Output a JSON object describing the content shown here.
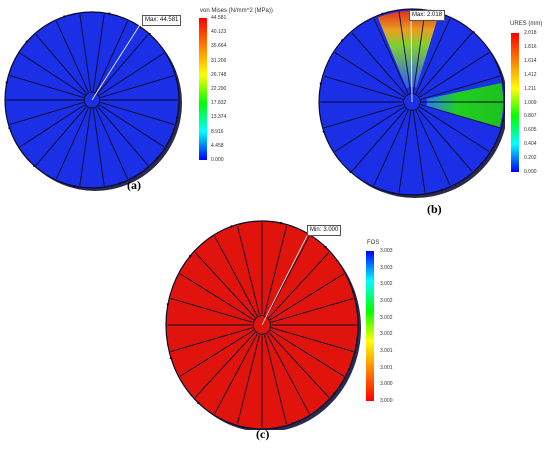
{
  "panels": {
    "a": {
      "caption": "(a)",
      "legend_title": "von Mises (N/mm^2 (MPa))",
      "ticks": [
        "44.581",
        "40.123",
        "35.664",
        "31.206",
        "26.748",
        "22.290",
        "17.832",
        "13.374",
        "8.916",
        "4.458",
        "0.000"
      ],
      "callout_label": "Max:",
      "callout_value": "44.581",
      "scale_colors": [
        "#ff0000",
        "#ff8000",
        "#ffff00",
        "#00ff00",
        "#00ffff",
        "#0000ff"
      ]
    },
    "b": {
      "caption": "(b)",
      "legend_title": "URES (mm)",
      "ticks": [
        "2.018",
        "1.816",
        "1.614",
        "1.412",
        "1.211",
        "1.009",
        "0.807",
        "0.605",
        "0.404",
        "0.202",
        "0.000"
      ],
      "callout_label": "Max:",
      "callout_value": "2.018",
      "scale_colors": [
        "#ff0000",
        "#ff8000",
        "#ffff00",
        "#00ff00",
        "#00ffff",
        "#0000ff"
      ]
    },
    "c": {
      "caption": "(c)",
      "legend_title": "FOS",
      "ticks": [
        "3.003",
        "3.003",
        "3.002",
        "3.002",
        "3.002",
        "3.002",
        "3.001",
        "3.001",
        "3.000",
        "3.000"
      ],
      "callout_label": "Min:",
      "callout_value": "3.000",
      "scale_colors": [
        "#0000ff",
        "#00ffff",
        "#00ff00",
        "#ffff00",
        "#ff8000",
        "#ff0000"
      ]
    }
  },
  "colors": {
    "disc_blue": "#1a2fe6",
    "disc_red": "#e0140c",
    "rib": "#0a0a2a"
  }
}
